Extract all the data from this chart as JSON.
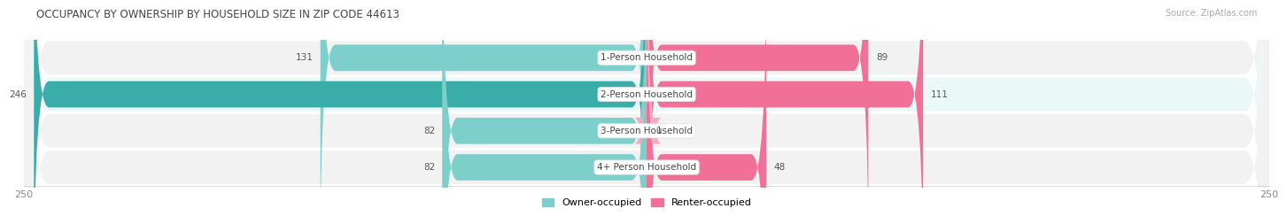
{
  "title": "OCCUPANCY BY OWNERSHIP BY HOUSEHOLD SIZE IN ZIP CODE 44613",
  "source": "Source: ZipAtlas.com",
  "categories": [
    "1-Person Household",
    "2-Person Household",
    "3-Person Household",
    "4+ Person Household"
  ],
  "owner_values": [
    131,
    246,
    82,
    82
  ],
  "renter_values": [
    89,
    111,
    1,
    48
  ],
  "owner_color_light": "#7dcfcc",
  "owner_color_dark": "#3aada8",
  "renter_color_light": "#f4aac0",
  "renter_color_dark": "#f07098",
  "row_bg_odd": "#f2f2f2",
  "row_bg_even": "#eaf8f7",
  "max_value": 250,
  "label_color": "#555555",
  "title_color": "#444444",
  "axis_label_color": "#999999",
  "legend_owner": "Owner-occupied",
  "legend_renter": "Renter-occupied"
}
